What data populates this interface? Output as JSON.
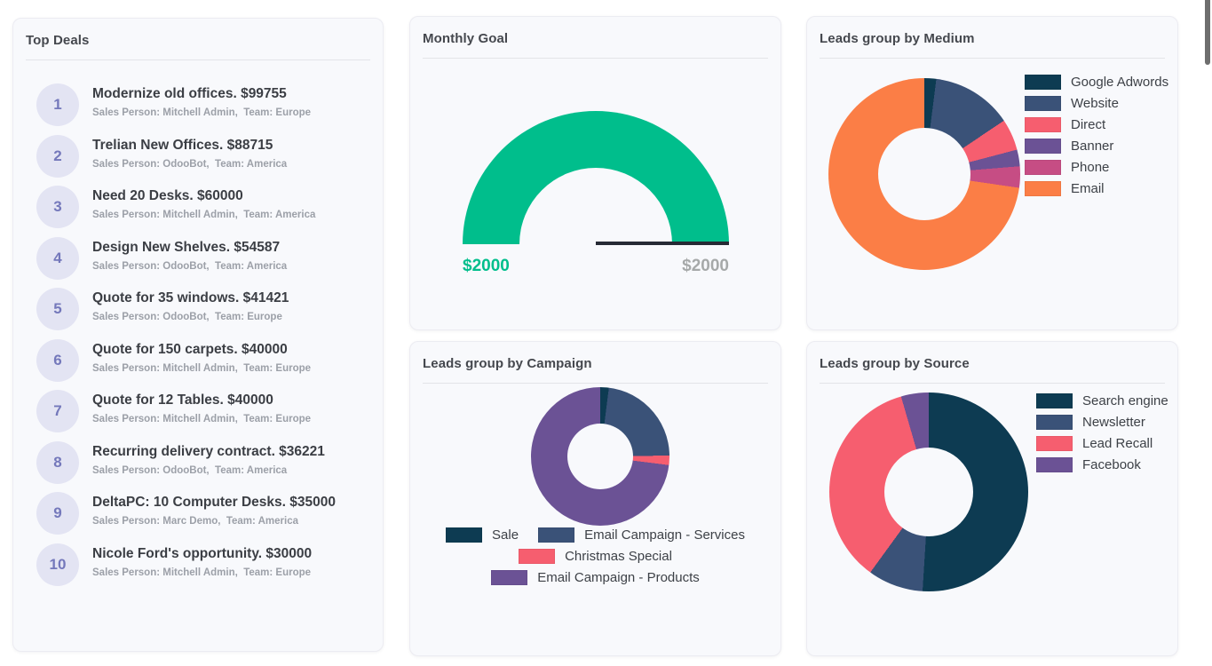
{
  "labels": {
    "sales_person_prefix": "Sales Person:",
    "team_prefix": "Team:"
  },
  "cards": {
    "top_deals": {
      "title": "Top Deals",
      "deals": [
        {
          "rank": "1",
          "title": "Modernize old offices. $99755",
          "sales_person": "Mitchell Admin",
          "team": "Europe"
        },
        {
          "rank": "2",
          "title": "Trelian New Offices. $88715",
          "sales_person": "OdooBot",
          "team": "America"
        },
        {
          "rank": "3",
          "title": "Need 20 Desks. $60000",
          "sales_person": "Mitchell Admin",
          "team": "America"
        },
        {
          "rank": "4",
          "title": "Design New Shelves. $54587",
          "sales_person": "OdooBot",
          "team": "America"
        },
        {
          "rank": "5",
          "title": "Quote for 35 windows. $41421",
          "sales_person": "OdooBot",
          "team": "Europe"
        },
        {
          "rank": "6",
          "title": "Quote for 150 carpets. $40000",
          "sales_person": "Mitchell Admin",
          "team": "Europe"
        },
        {
          "rank": "7",
          "title": "Quote for 12 Tables. $40000",
          "sales_person": "Mitchell Admin",
          "team": "Europe"
        },
        {
          "rank": "8",
          "title": "Recurring delivery contract. $36221",
          "sales_person": "OdooBot",
          "team": "America"
        },
        {
          "rank": "9",
          "title": "DeltaPC: 10 Computer Desks. $35000",
          "sales_person": "Marc Demo",
          "team": "America"
        },
        {
          "rank": "10",
          "title": "Nicole Ford's opportunity. $30000",
          "sales_person": "Mitchell Admin",
          "team": "Europe"
        }
      ]
    }
  },
  "chart_data": [
    {
      "key": "monthly_goal",
      "type": "gauge",
      "title": "Monthly Goal",
      "value": 2000,
      "max": 2000,
      "value_label": "$2000",
      "max_label": "$2000",
      "color": "#00be8c",
      "track_color": "#eceef1",
      "threshold_line_color": "#262a35"
    },
    {
      "key": "medium",
      "type": "pie",
      "title": "Leads group by Medium",
      "categories": [
        "Google Adwords",
        "Website",
        "Direct",
        "Banner",
        "Phone",
        "Email"
      ],
      "values": [
        2,
        13.6,
        5.3,
        2.8,
        3.6,
        72.7
      ],
      "unit": "percent-of-donut (estimated from arc angles)",
      "colors": [
        "#0d3b52",
        "#3a5278",
        "#f65e6f",
        "#6b5295",
        "#c64d84",
        "#fb7e46"
      ],
      "legend_position": "right",
      "donut_hole": true
    },
    {
      "key": "campaign",
      "type": "pie",
      "title": "Leads group by Campaign",
      "categories": [
        "Sale",
        "Email Campaign - Services",
        "Christmas Special",
        "Email Campaign - Products"
      ],
      "values": [
        2,
        22.8,
        2.2,
        73
      ],
      "unit": "percent-of-donut (estimated from arc angles)",
      "colors": [
        "#0d3b52",
        "#3a5278",
        "#f65e6f",
        "#6b5295"
      ],
      "legend_position": "bottom",
      "donut_hole": true
    },
    {
      "key": "source",
      "type": "pie",
      "title": "Leads group by Source",
      "categories": [
        "Search engine",
        "Newsletter",
        "Lead Recall",
        "Facebook"
      ],
      "values": [
        51,
        9,
        35.5,
        4.5
      ],
      "unit": "percent-of-donut (estimated from arc angles)",
      "colors": [
        "#0d3b52",
        "#3a5278",
        "#f65e6f",
        "#6b5295"
      ],
      "legend_position": "right",
      "donut_hole": true
    }
  ]
}
